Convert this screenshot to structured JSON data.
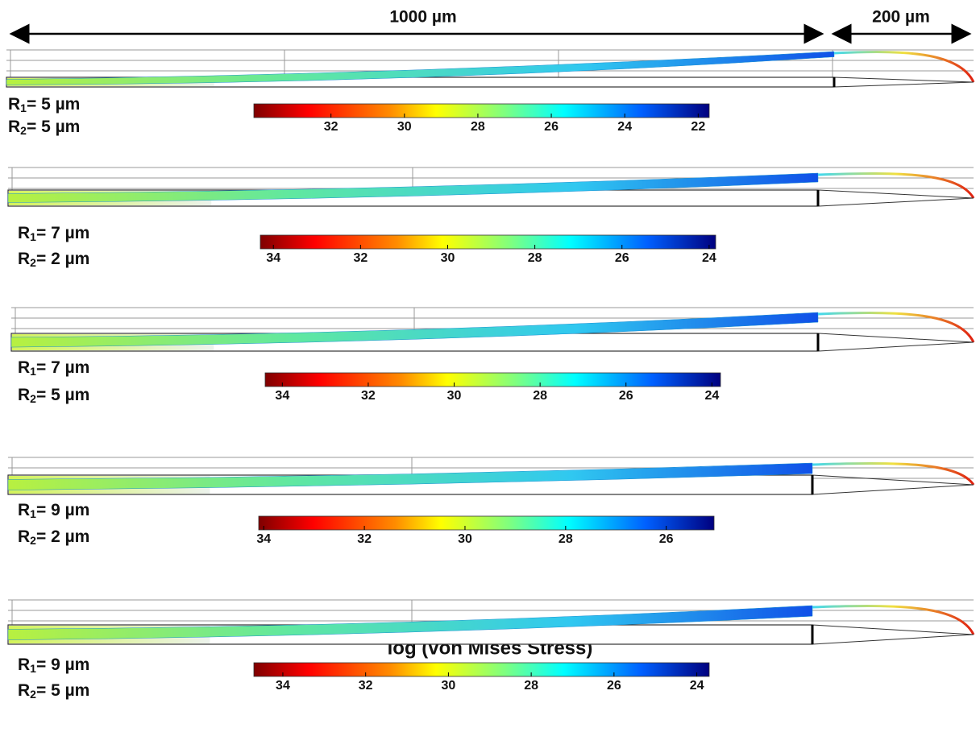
{
  "dimensions": {
    "length": "1000 µm",
    "tip": "200 µm"
  },
  "panels": [
    {
      "r1": {
        "symbol": "R",
        "sub": "1",
        "text": "= 5 µm"
      },
      "r2": {
        "symbol": "R",
        "sub": "2",
        "text": "= 5 µm"
      },
      "colorbar": {
        "clim": [
          34.1,
          21.7
        ],
        "ticks": [
          32,
          30,
          28,
          26,
          24,
          22
        ]
      }
    },
    {
      "r1": {
        "symbol": "R",
        "sub": "1",
        "text": "= 7 µm"
      },
      "r2": {
        "symbol": "R",
        "sub": "2",
        "text": "= 2 µm"
      },
      "colorbar": {
        "clim": [
          34.3,
          23.85
        ],
        "ticks": [
          34,
          32,
          30,
          28,
          26,
          24
        ]
      }
    },
    {
      "r1": {
        "symbol": "R",
        "sub": "1",
        "text": "= 7 µm"
      },
      "r2": {
        "symbol": "R",
        "sub": "2",
        "text": "= 5 µm"
      },
      "colorbar": {
        "clim": [
          34.4,
          23.8
        ],
        "ticks": [
          34,
          32,
          30,
          28,
          26,
          24
        ]
      }
    },
    {
      "r1": {
        "symbol": "R",
        "sub": "1",
        "text": "= 9 µm"
      },
      "r2": {
        "symbol": "R",
        "sub": "2",
        "text": "= 2 µm"
      },
      "colorbar": {
        "clim": [
          34.1,
          25.05
        ],
        "ticks": [
          34,
          32,
          30,
          28,
          26
        ]
      }
    },
    {
      "r1": {
        "symbol": "R",
        "sub": "1",
        "text": "= 9 µm"
      },
      "r2": {
        "symbol": "R",
        "sub": "2",
        "text": "= 5 µm"
      },
      "colorbar": {
        "clim": [
          34.7,
          23.7
        ],
        "ticks": [
          34,
          32,
          30,
          28,
          26,
          24
        ]
      }
    }
  ],
  "colorbar_label": "log (von Mises Stress)"
}
